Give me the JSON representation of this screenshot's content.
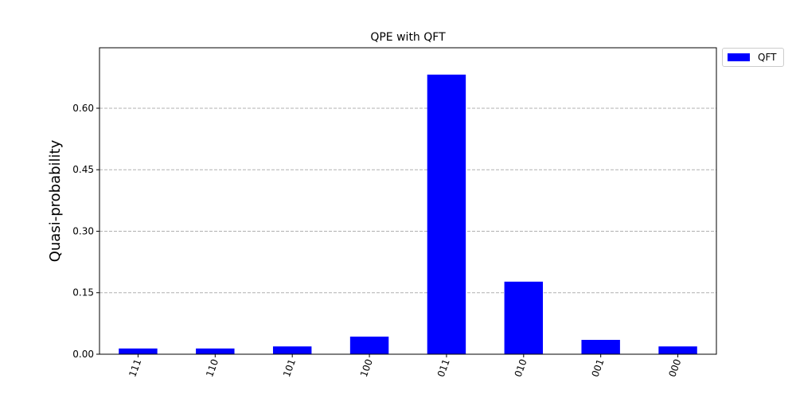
{
  "chart_data": {
    "type": "bar",
    "title": "QPE with QFT",
    "xlabel": "",
    "ylabel": "Quasi-probability",
    "categories": [
      "111",
      "110",
      "101",
      "100",
      "011",
      "010",
      "001",
      "000"
    ],
    "series": [
      {
        "name": "QFT",
        "color": "#0000ff",
        "values": [
          0.014,
          0.014,
          0.019,
          0.043,
          0.682,
          0.177,
          0.035,
          0.019
        ]
      }
    ],
    "ylim": [
      0,
      0.7475
    ],
    "yticks": [
      0.0,
      0.15,
      0.3,
      0.45,
      0.6
    ],
    "ytick_labels": [
      "0.00",
      "0.15",
      "0.30",
      "0.45",
      "0.60"
    ],
    "grid": "y-dashed",
    "legend_position": "outside-top-right"
  }
}
